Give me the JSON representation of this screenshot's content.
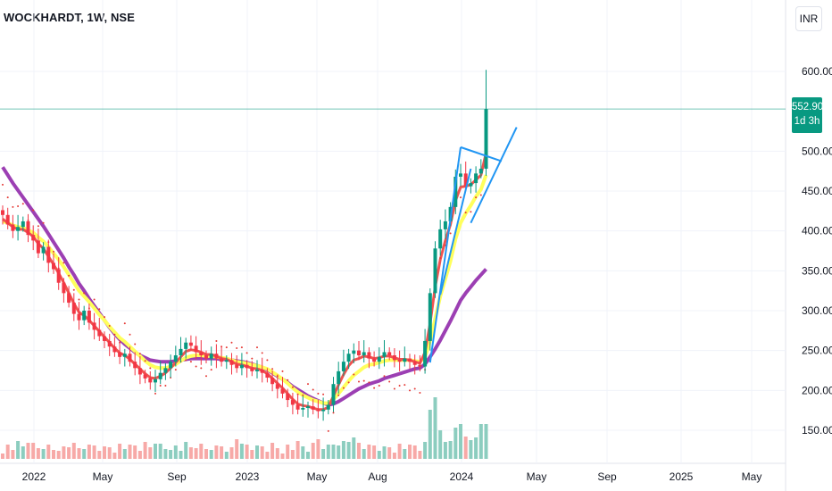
{
  "header": {
    "title": "WOCKHARDT, 1W, NSE",
    "currency": "INR"
  },
  "price_tag": {
    "price": "552.90",
    "countdown": "1d 3h"
  },
  "colors": {
    "up": "#089981",
    "down": "#f23645",
    "ema_red": "#ef5350",
    "ema_yellow": "#ffff5c",
    "ema_purple": "#9c3fb3",
    "pattern": "#2196f3",
    "psar": "#e53935",
    "vol_up": "#8ccdbf",
    "vol_down": "#f7a9a7",
    "price_line": "#089981"
  },
  "chart_data": {
    "type": "candlestick",
    "ylim": [
      110,
      625
    ],
    "y_ticks": [
      "600.00",
      "500.00",
      "450.00",
      "400.00",
      "350.00",
      "300.00",
      "250.00",
      "200.00",
      "150.00"
    ],
    "x_ticks": [
      "2022",
      "May",
      "Sep",
      "2023",
      "May",
      "Aug",
      "2024",
      "May",
      "Sep",
      "2025",
      "May"
    ],
    "grid": true,
    "last_price": 552.9,
    "closes": [
      420,
      408,
      400,
      405,
      412,
      395,
      388,
      372,
      380,
      360,
      352,
      335,
      322,
      310,
      296,
      288,
      300,
      285,
      276,
      268,
      262,
      255,
      248,
      242,
      246,
      236,
      228,
      220,
      215,
      210,
      214,
      222,
      228,
      236,
      244,
      252,
      260,
      256,
      248,
      244,
      240,
      246,
      240,
      236,
      238,
      232,
      228,
      232,
      228,
      224,
      226,
      222,
      216,
      208,
      202,
      196,
      188,
      182,
      176,
      178,
      180,
      176,
      174,
      176,
      182,
      208,
      224,
      236,
      246,
      250,
      244,
      248,
      240,
      236,
      242,
      248,
      244,
      238,
      236,
      240,
      236,
      232,
      230,
      262,
      322,
      378,
      402,
      412,
      430,
      468,
      472,
      456,
      460,
      472,
      478,
      552.9
    ],
    "ema_fast": [
      415,
      410,
      405,
      402,
      402,
      398,
      393,
      384,
      378,
      368,
      358,
      347,
      335,
      322,
      309,
      298,
      294,
      288,
      281,
      274,
      267,
      260,
      253,
      247,
      244,
      239,
      233,
      227,
      221,
      216,
      215,
      218,
      222,
      228,
      235,
      242,
      249,
      251,
      250,
      248,
      245,
      245,
      243,
      240,
      239,
      236,
      233,
      232,
      230,
      228,
      227,
      225,
      221,
      215,
      209,
      203,
      196,
      189,
      183,
      181,
      180,
      178,
      176,
      176,
      179,
      193,
      207,
      220,
      231,
      238,
      240,
      243,
      242,
      240,
      241,
      243,
      243,
      241,
      239,
      239,
      238,
      236,
      234,
      248,
      284,
      330,
      364,
      388,
      408,
      438,
      455,
      456,
      458,
      464,
      470,
      498
    ],
    "ema_mid": [
      412,
      410,
      407,
      405,
      404,
      401,
      398,
      392,
      387,
      380,
      372,
      364,
      355,
      345,
      335,
      325,
      318,
      311,
      303,
      295,
      288,
      280,
      273,
      266,
      261,
      255,
      249,
      243,
      237,
      232,
      229,
      228,
      228,
      230,
      233,
      237,
      241,
      243,
      244,
      244,
      243,
      243,
      242,
      241,
      240,
      238,
      236,
      235,
      234,
      232,
      231,
      229,
      227,
      223,
      219,
      214,
      209,
      203,
      198,
      194,
      191,
      188,
      186,
      184,
      184,
      189,
      196,
      204,
      212,
      219,
      224,
      229,
      232,
      233,
      235,
      237,
      238,
      238,
      238,
      238,
      238,
      237,
      236,
      242,
      262,
      290,
      318,
      340,
      362,
      390,
      410,
      422,
      432,
      443,
      452,
      470
    ],
    "ema_slow": [
      480,
      470,
      460,
      451,
      442,
      433,
      424,
      415,
      406,
      396,
      386,
      376,
      366,
      355,
      345,
      334,
      325,
      315,
      306,
      297,
      288,
      279,
      271,
      264,
      258,
      253,
      248,
      244,
      241,
      238,
      237,
      236,
      236,
      236,
      237,
      238,
      239,
      240,
      240,
      240,
      240,
      240,
      240,
      239,
      239,
      238,
      237,
      236,
      235,
      233,
      231,
      229,
      226,
      222,
      218,
      214,
      210,
      205,
      201,
      197,
      193,
      190,
      187,
      184,
      182,
      183,
      186,
      190,
      194,
      198,
      202,
      205,
      208,
      210,
      212,
      215,
      217,
      219,
      221,
      223,
      225,
      227,
      228,
      233,
      242,
      252,
      263,
      275,
      287,
      300,
      313,
      322,
      330,
      338,
      345,
      352
    ]
  }
}
